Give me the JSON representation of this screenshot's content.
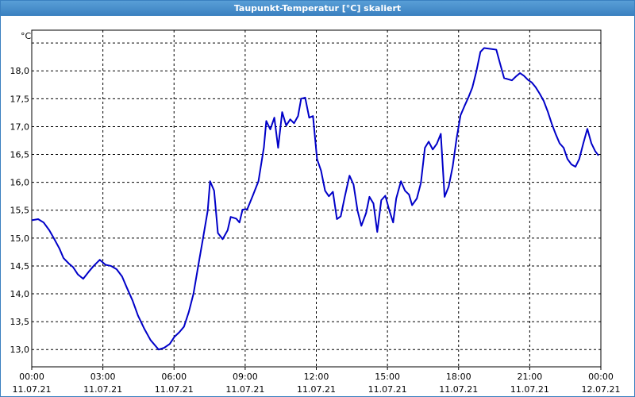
{
  "chart_data": {
    "type": "line",
    "title": "Taupunkt-Temperatur [°C] skaliert",
    "y_unit": "°C",
    "xlim": [
      0,
      24
    ],
    "ylim": [
      12.69,
      18.73
    ],
    "grid": true,
    "yticks": [
      {
        "value": 13.0,
        "label": "13,0"
      },
      {
        "value": 13.5,
        "label": "13,5"
      },
      {
        "value": 14.0,
        "label": "14,0"
      },
      {
        "value": 14.5,
        "label": "14,5"
      },
      {
        "value": 15.0,
        "label": "15,0"
      },
      {
        "value": 15.5,
        "label": "15,5"
      },
      {
        "value": 16.0,
        "label": "16,0"
      },
      {
        "value": 16.5,
        "label": "16,5"
      },
      {
        "value": 17.0,
        "label": "17,0"
      },
      {
        "value": 17.5,
        "label": "17,5"
      },
      {
        "value": 18.0,
        "label": "18,0"
      },
      {
        "value": 18.5,
        "label": null
      }
    ],
    "xticks": [
      {
        "value": 0,
        "label": [
          "00:00",
          "11.07.21"
        ]
      },
      {
        "value": 3,
        "label": [
          "03:00",
          "11.07.21"
        ]
      },
      {
        "value": 6,
        "label": [
          "06:00",
          "11.07.21"
        ]
      },
      {
        "value": 9,
        "label": [
          "09:00",
          "11.07.21"
        ]
      },
      {
        "value": 12,
        "label": [
          "12:00",
          "11.07.21"
        ]
      },
      {
        "value": 15,
        "label": [
          "15:00",
          "11.07.21"
        ]
      },
      {
        "value": 18,
        "label": [
          "18:00",
          "11.07.21"
        ]
      },
      {
        "value": 21,
        "label": [
          "21:00",
          "11.07.21"
        ]
      },
      {
        "value": 24,
        "label": [
          "00:00",
          "12.07.21"
        ]
      }
    ],
    "series": [
      {
        "color": "#0000c8",
        "x": [
          0,
          0.27,
          0.5,
          0.74,
          0.94,
          1.17,
          1.34,
          1.57,
          1.74,
          1.94,
          2.17,
          2.41,
          2.61,
          2.87,
          3.11,
          3.34,
          3.58,
          3.81,
          4.01,
          4.25,
          4.48,
          4.75,
          5.01,
          5.35,
          5.58,
          5.82,
          6.02,
          6.22,
          6.42,
          6.62,
          6.82,
          7.02,
          7.22,
          7.42,
          7.52,
          7.69,
          7.85,
          8.05,
          8.26,
          8.39,
          8.62,
          8.76,
          8.89,
          9.09,
          9.32,
          9.56,
          9.79,
          9.89,
          10.06,
          10.23,
          10.39,
          10.56,
          10.73,
          10.9,
          11.06,
          11.23,
          11.36,
          11.53,
          11.7,
          11.86,
          12.03,
          12.2,
          12.37,
          12.53,
          12.7,
          12.87,
          13.03,
          13.2,
          13.4,
          13.57,
          13.74,
          13.9,
          14.1,
          14.24,
          14.41,
          14.57,
          14.74,
          14.91,
          15.07,
          15.24,
          15.37,
          15.57,
          15.74,
          15.91,
          16.04,
          16.24,
          16.41,
          16.58,
          16.74,
          16.91,
          17.08,
          17.25,
          17.41,
          17.58,
          17.75,
          17.91,
          18.08,
          18.25,
          18.42,
          18.58,
          18.75,
          18.92,
          19.08,
          19.59,
          19.75,
          19.92,
          20.25,
          20.42,
          20.59,
          20.76,
          20.92,
          21.09,
          21.26,
          21.42,
          21.59,
          21.76,
          21.93,
          22.09,
          22.26,
          22.43,
          22.59,
          22.76,
          22.93,
          23.09,
          23.26,
          23.43,
          23.6,
          23.76,
          23.9
        ],
        "values": [
          15.32,
          15.34,
          15.28,
          15.14,
          14.99,
          14.81,
          14.64,
          14.54,
          14.48,
          14.35,
          14.27,
          14.4,
          14.5,
          14.61,
          14.52,
          14.5,
          14.44,
          14.31,
          14.11,
          13.88,
          13.61,
          13.37,
          13.17,
          13.0,
          13.03,
          13.1,
          13.23,
          13.31,
          13.41,
          13.67,
          14.0,
          14.5,
          14.99,
          15.49,
          16.02,
          15.85,
          15.09,
          14.98,
          15.14,
          15.38,
          15.35,
          15.28,
          15.51,
          15.52,
          15.76,
          16.02,
          16.63,
          17.1,
          16.95,
          17.16,
          16.62,
          17.26,
          17.02,
          17.13,
          17.06,
          17.19,
          17.5,
          17.52,
          17.16,
          17.19,
          16.42,
          16.21,
          15.85,
          15.75,
          15.83,
          15.34,
          15.39,
          15.74,
          16.12,
          15.96,
          15.49,
          15.22,
          15.45,
          15.74,
          15.62,
          15.11,
          15.68,
          15.76,
          15.51,
          15.28,
          15.71,
          16.02,
          15.85,
          15.78,
          15.59,
          15.71,
          15.99,
          16.62,
          16.73,
          16.59,
          16.69,
          16.87,
          15.74,
          15.92,
          16.28,
          16.77,
          17.2,
          17.37,
          17.53,
          17.7,
          17.99,
          18.34,
          18.41,
          18.38,
          18.13,
          17.87,
          17.83,
          17.9,
          17.96,
          17.91,
          17.84,
          17.79,
          17.7,
          17.59,
          17.46,
          17.27,
          17.05,
          16.87,
          16.7,
          16.62,
          16.42,
          16.32,
          16.28,
          16.42,
          16.7,
          16.96,
          16.7,
          16.56,
          16.48
        ]
      }
    ]
  }
}
